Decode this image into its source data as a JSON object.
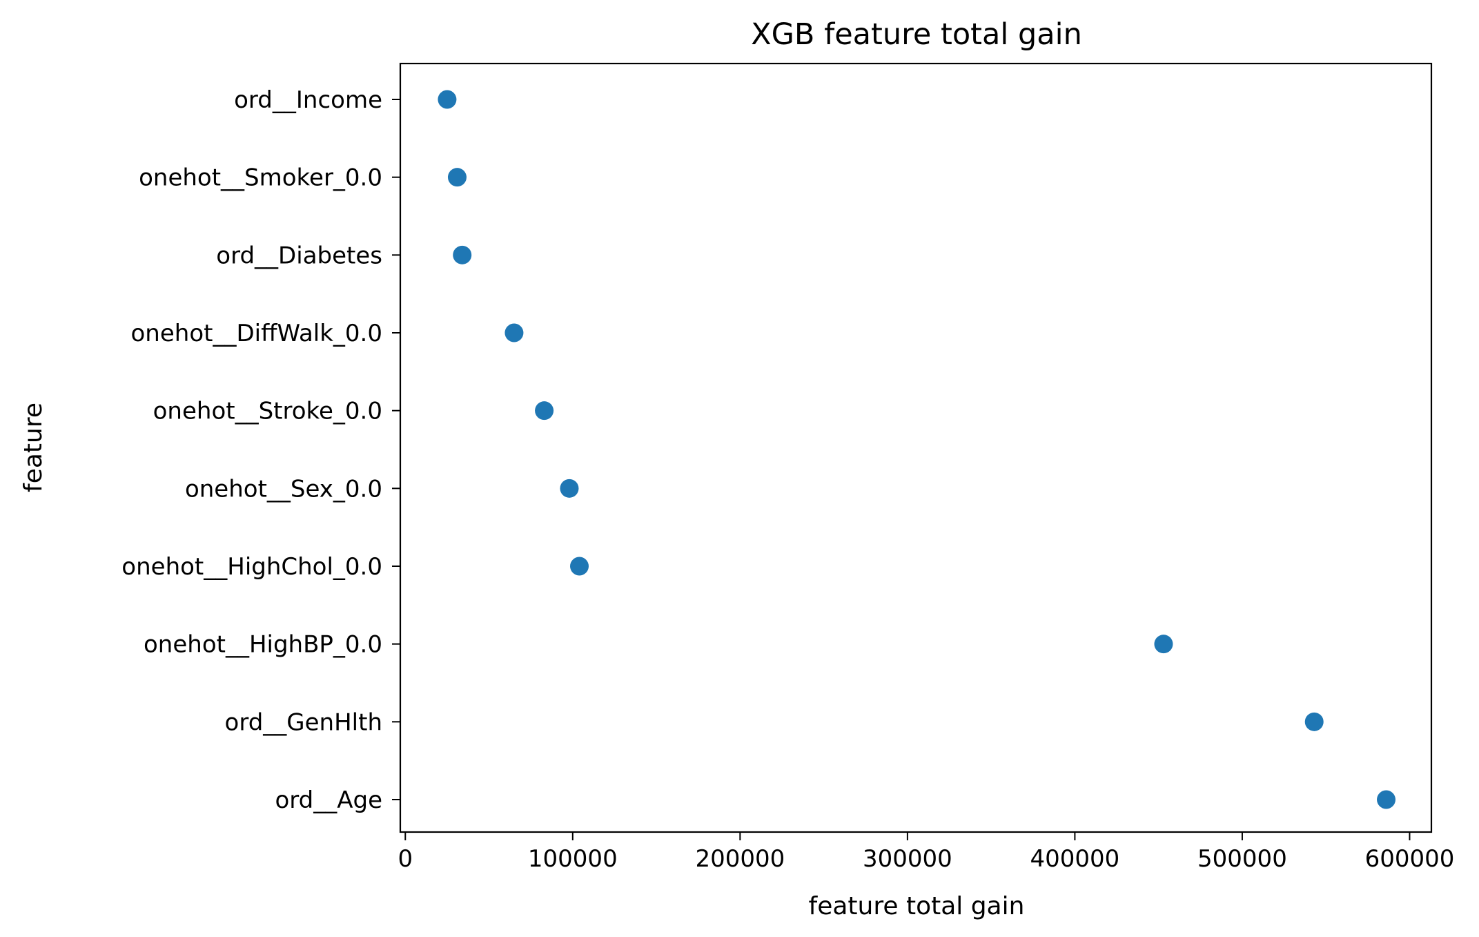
{
  "chart_data": {
    "type": "scatter",
    "title": "XGB feature total gain",
    "xlabel": "feature total gain",
    "ylabel": "feature",
    "xlim": [
      -3000,
      613000
    ],
    "xticks": [
      0,
      100000,
      200000,
      300000,
      400000,
      500000,
      600000
    ],
    "xtick_labels": [
      "0",
      "100000",
      "200000",
      "300000",
      "400000",
      "500000",
      "600000"
    ],
    "grid": false,
    "categories": [
      "ord__Income",
      "onehot__Smoker_0.0",
      "ord__Diabetes",
      "onehot__DiffWalk_0.0",
      "onehot__Stroke_0.0",
      "onehot__Sex_0.0",
      "onehot__HighChol_0.0",
      "onehot__HighBP_0.0",
      "ord__GenHlth",
      "ord__Age"
    ],
    "values": [
      25000,
      31000,
      34000,
      65000,
      83000,
      98000,
      104000,
      453000,
      543000,
      586000
    ],
    "marker_color": "#1f77b4"
  }
}
